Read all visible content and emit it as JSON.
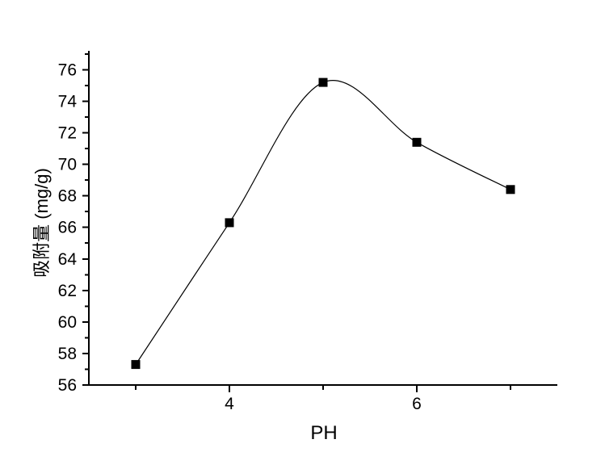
{
  "figure": {
    "background_color": "#ffffff",
    "foreground_color": "#000000"
  },
  "chart_data": {
    "type": "line",
    "title": "",
    "xlabel": "PH",
    "ylabel": "吸附量 (mg/g)",
    "x": [
      3,
      4,
      5,
      6,
      7
    ],
    "y": [
      57.3,
      66.3,
      75.2,
      71.4,
      68.4
    ],
    "xlim": [
      2.5,
      7.5
    ],
    "ylim": [
      56,
      77.2
    ],
    "x_major_ticks": [
      4,
      6
    ],
    "x_minor_ticks": [
      3,
      5,
      7
    ],
    "y_major_ticks": [
      56,
      58,
      60,
      62,
      64,
      66,
      68,
      70,
      72,
      74,
      76
    ],
    "y_minor_ticks": [
      57,
      59,
      61,
      63,
      65,
      67,
      69,
      71,
      73,
      75,
      77
    ],
    "marker": "filled-square",
    "marker_size": 11,
    "marker_color": "#000000",
    "line_style": "smooth-spline",
    "line_color": "#000000",
    "grid": false,
    "legend": false,
    "spines": [
      "left",
      "bottom"
    ],
    "tick_direction": "out"
  }
}
